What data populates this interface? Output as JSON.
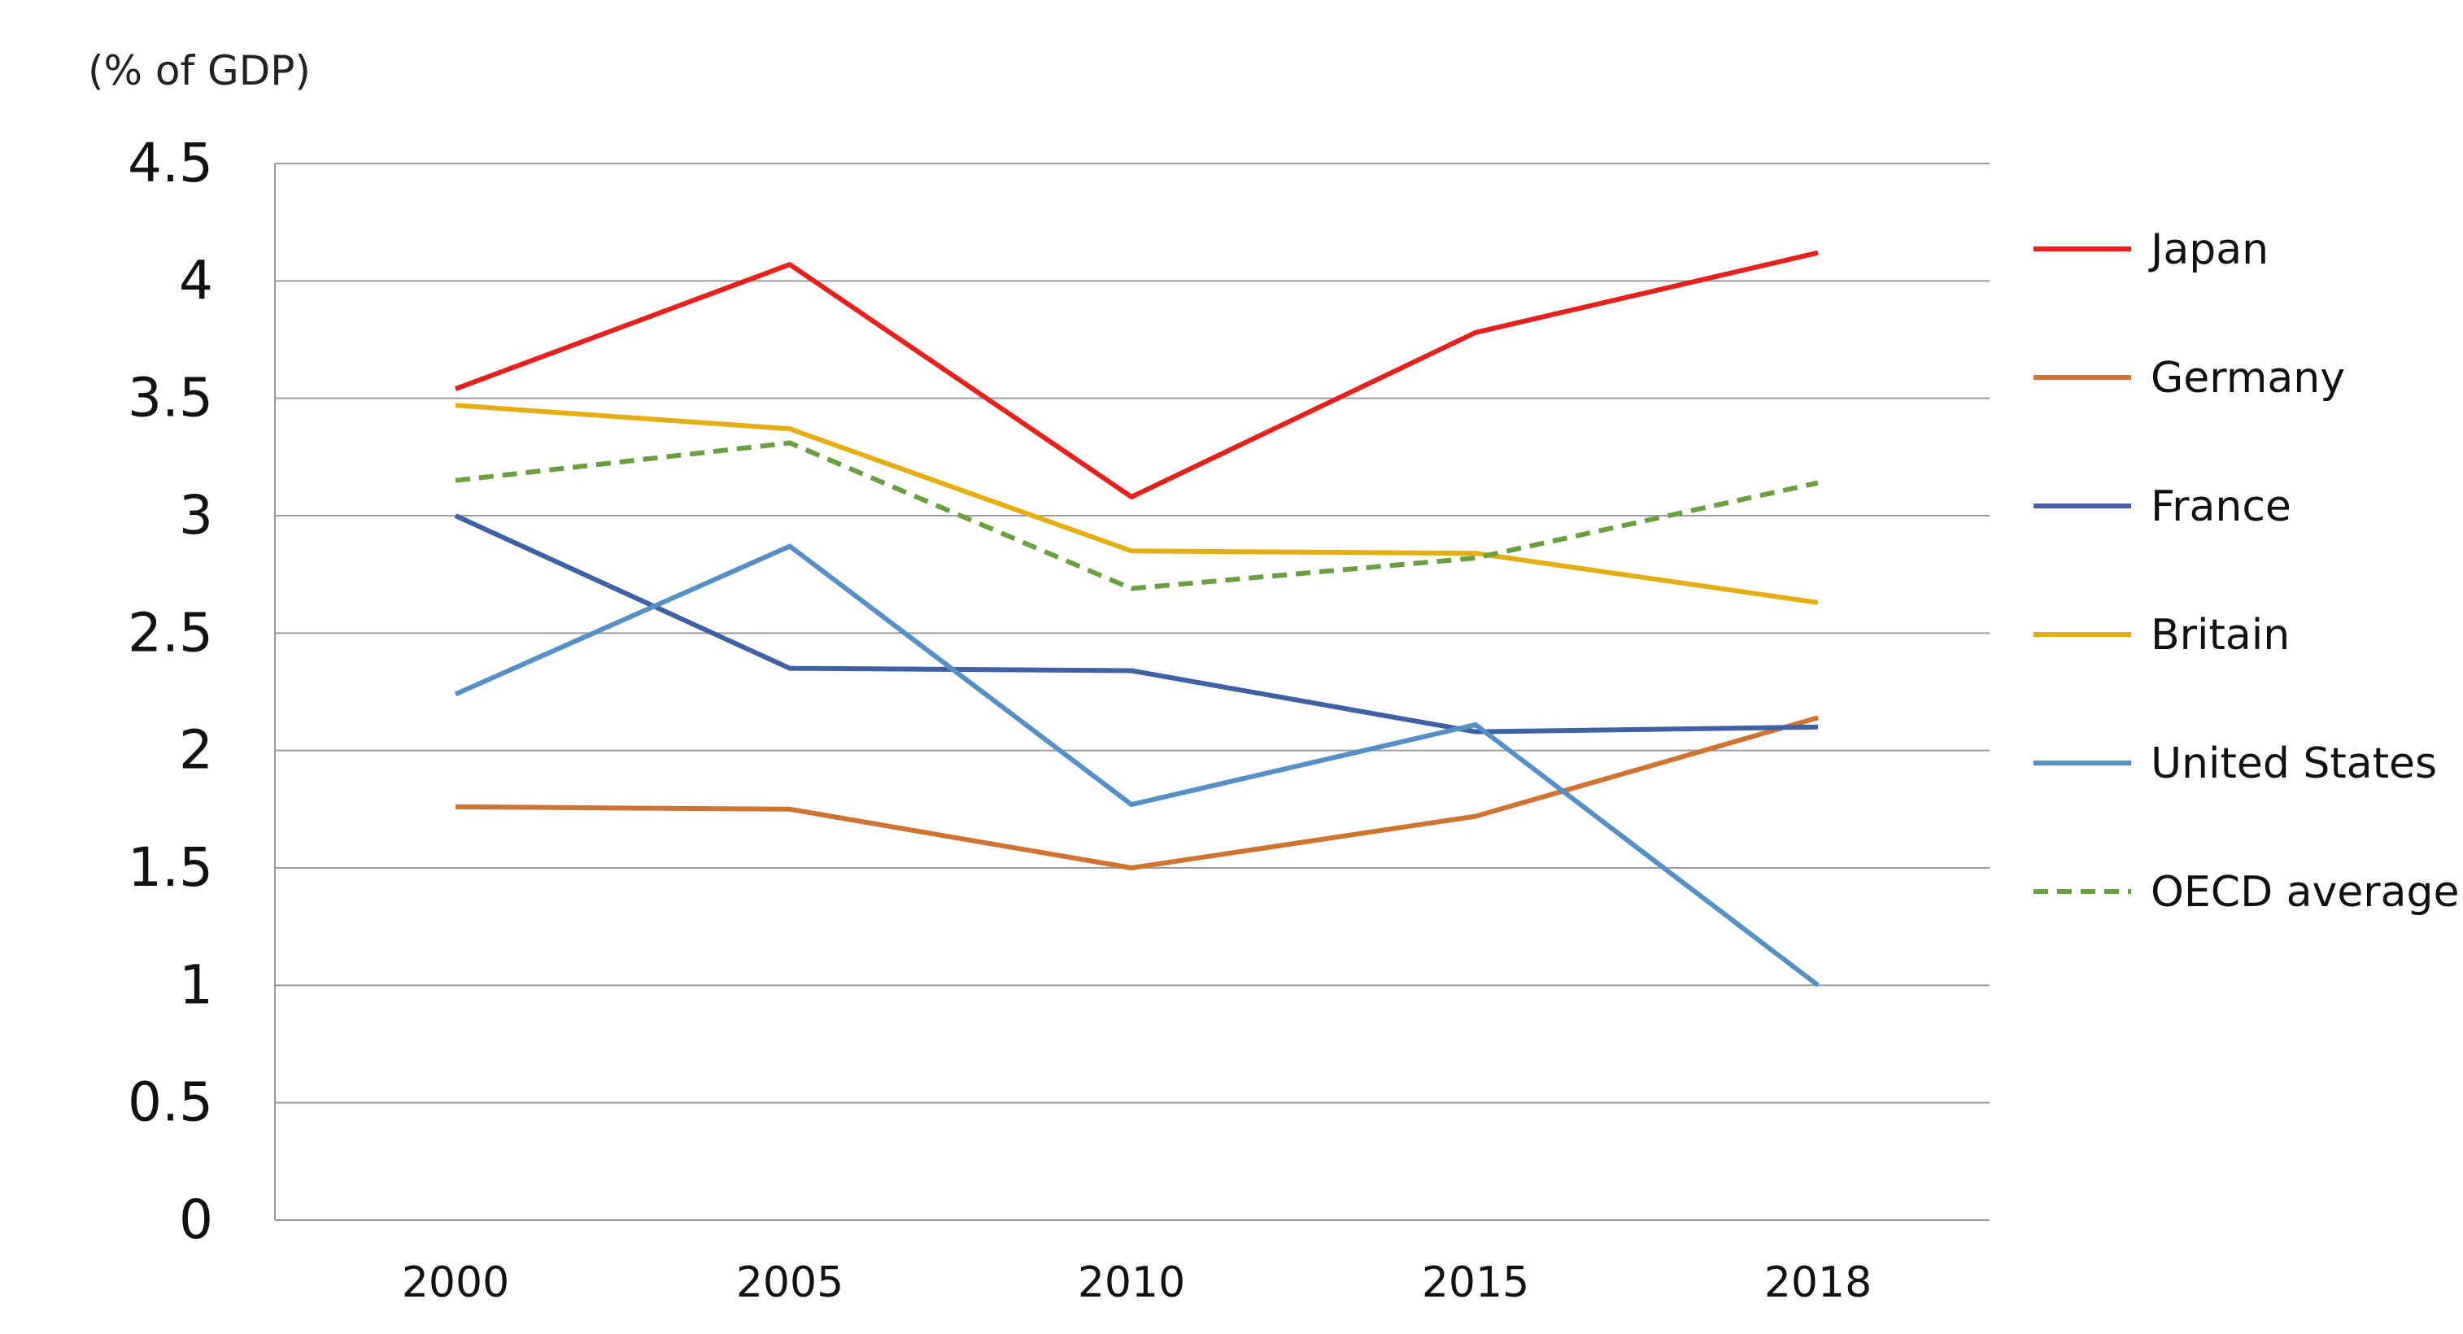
{
  "chart_data": {
    "type": "line",
    "ylabel": "(% of GDP)",
    "xlabel": "",
    "categories": [
      "2000",
      "2005",
      "2010",
      "2015",
      "2018"
    ],
    "ylim": [
      0,
      4.5
    ],
    "yticks": [
      0,
      0.5,
      1,
      1.5,
      2,
      2.5,
      3,
      3.5,
      4,
      4.5
    ],
    "ytick_labels": [
      "0",
      "0.5",
      "1",
      "1.5",
      "2",
      "2.5",
      "3",
      "3.5",
      "4",
      "4.5"
    ],
    "grid": true,
    "legend_position": "right",
    "series": [
      {
        "name": "Japan",
        "values": [
          3.54,
          4.07,
          3.08,
          3.78,
          4.12
        ],
        "color": "#e8201c",
        "dash": "solid"
      },
      {
        "name": "Germany",
        "values": [
          1.76,
          1.75,
          1.5,
          1.72,
          2.14
        ],
        "color": "#d2722f",
        "dash": "solid"
      },
      {
        "name": "France",
        "values": [
          3.0,
          2.35,
          2.34,
          2.08,
          2.1
        ],
        "color": "#3e61a6",
        "dash": "solid"
      },
      {
        "name": "Britain",
        "values": [
          3.47,
          3.37,
          2.85,
          2.84,
          2.63
        ],
        "color": "#e6ad12",
        "dash": "solid"
      },
      {
        "name": "United States",
        "values": [
          2.24,
          2.87,
          1.77,
          2.11,
          1.0
        ],
        "color": "#5490c6",
        "dash": "solid"
      },
      {
        "name": "OECD average",
        "values": [
          3.15,
          3.31,
          2.69,
          2.82,
          3.14
        ],
        "color": "#6a9f3f",
        "dash": "dashed"
      }
    ]
  }
}
